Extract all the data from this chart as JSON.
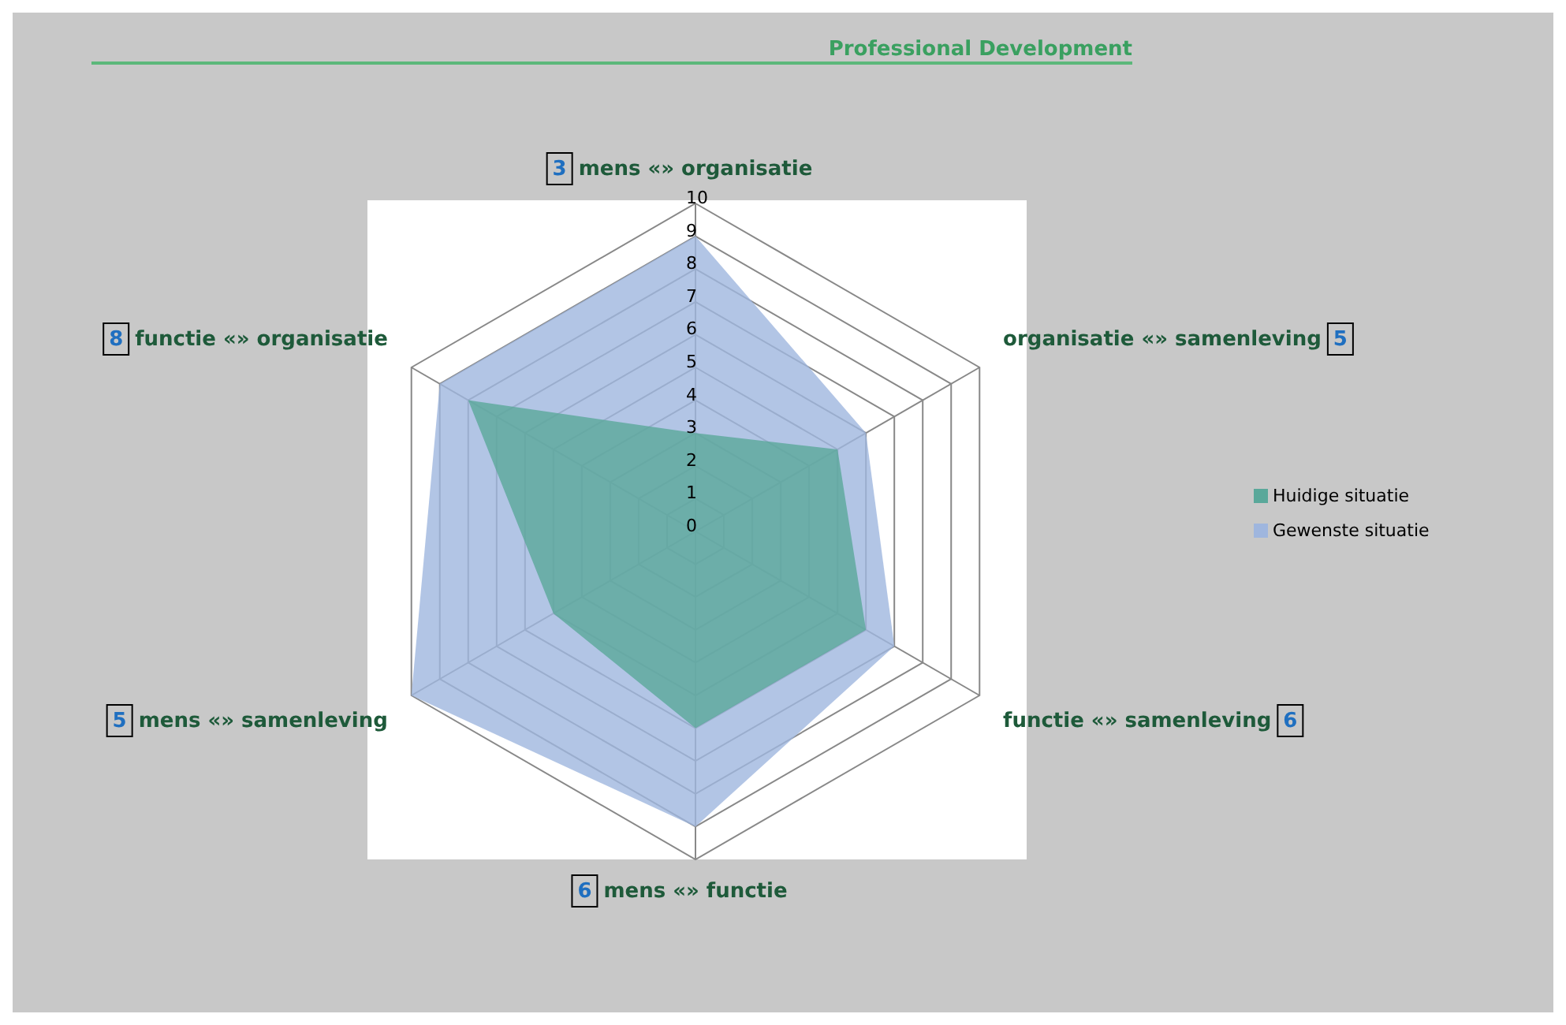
{
  "chart_data": {
    "type": "radar",
    "title": "Professional Development",
    "categories": [
      "mens «» organisatie",
      "organisatie «» samenleving",
      "functie «» samenleving",
      "mens «» functie",
      "mens «» samenleving",
      "functie «» organisatie"
    ],
    "series": [
      {
        "name": "Huidige situatie",
        "color": "#5aa89a",
        "values": [
          3,
          5,
          6,
          6,
          5,
          8
        ]
      },
      {
        "name": "Gewenste situatie",
        "color": "#9fb6de",
        "values": [
          9,
          6,
          7,
          9,
          10,
          9
        ]
      }
    ],
    "annotations": [
      "3",
      "5",
      "6",
      "6",
      "5",
      "8"
    ],
    "ylim": [
      0,
      10
    ],
    "yticks": [
      0,
      1,
      2,
      3,
      4,
      5,
      6,
      7,
      8,
      9,
      10
    ],
    "legend": "right"
  }
}
